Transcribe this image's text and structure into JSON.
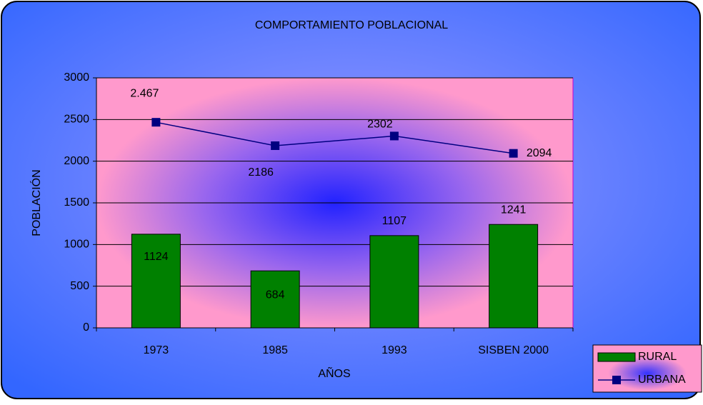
{
  "chart_data": {
    "type": "bar",
    "title": "COMPORTAMIENTO POBLACIONAL",
    "x_label": "AÑOS",
    "y_label": "POBLACIÓN",
    "categories": [
      "1973",
      "1985",
      "1993",
      "SISBEN 2000"
    ],
    "series": [
      {
        "name": "RURAL",
        "type": "bar",
        "color": "#008000",
        "values": [
          1124,
          684,
          1107,
          1241
        ]
      },
      {
        "name": "URBANA",
        "type": "line",
        "color": "#000080",
        "values": [
          2467,
          2186,
          2302,
          2094
        ],
        "value_labels": [
          "2.467",
          "2186",
          "2302",
          "2094"
        ]
      }
    ],
    "ylim": [
      0,
      3000
    ],
    "yticks": [
      0,
      500,
      1000,
      1500,
      2000,
      2500,
      3000
    ],
    "grid": true,
    "legend": "bottom-right"
  }
}
